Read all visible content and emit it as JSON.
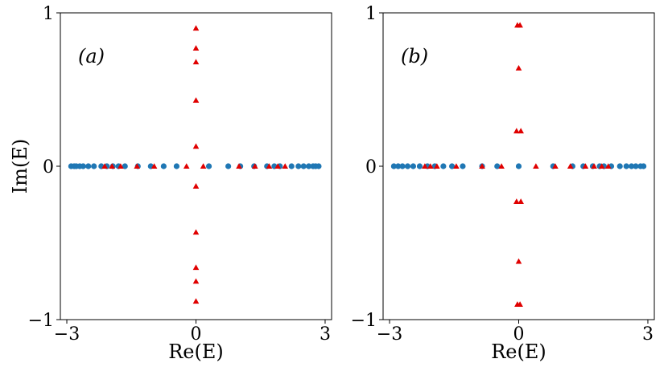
{
  "chart_data": [
    {
      "type": "scatter",
      "panel_label": "(a)",
      "xlabel": "Re(E)",
      "ylabel": "Im(E)",
      "xlim": [
        -3.15,
        3.15
      ],
      "ylim": [
        -1,
        1
      ],
      "xticks": [
        {
          "v": -3,
          "label": "−3"
        },
        {
          "v": 0,
          "label": "0"
        },
        {
          "v": 3,
          "label": "3"
        }
      ],
      "yticks": [
        {
          "v": -1,
          "label": "−1"
        },
        {
          "v": 0,
          "label": "0"
        },
        {
          "v": 1,
          "label": "1"
        }
      ],
      "grid": false,
      "series": [
        {
          "marker": "circle",
          "color": "#1f77b4",
          "points": [
            [
              -2.9,
              0
            ],
            [
              -2.83,
              0
            ],
            [
              -2.78,
              0
            ],
            [
              -2.7,
              0
            ],
            [
              -2.62,
              0
            ],
            [
              -2.5,
              0
            ],
            [
              -2.37,
              0
            ],
            [
              -2.2,
              0
            ],
            [
              -2.07,
              0
            ],
            [
              -1.93,
              0
            ],
            [
              -1.8,
              0
            ],
            [
              -1.65,
              0
            ],
            [
              -1.35,
              0
            ],
            [
              -1.05,
              0
            ],
            [
              -0.75,
              0
            ],
            [
              -0.45,
              0
            ],
            [
              0.3,
              0
            ],
            [
              0.75,
              0
            ],
            [
              1.03,
              0
            ],
            [
              1.35,
              0
            ],
            [
              1.65,
              0
            ],
            [
              1.82,
              0
            ],
            [
              1.95,
              0
            ],
            [
              2.22,
              0
            ],
            [
              2.38,
              0
            ],
            [
              2.5,
              0
            ],
            [
              2.62,
              0
            ],
            [
              2.72,
              0
            ],
            [
              2.78,
              0
            ],
            [
              2.85,
              0
            ]
          ]
        },
        {
          "marker": "triangle",
          "color": "#e00000",
          "points": [
            [
              -2.12,
              0
            ],
            [
              -1.95,
              0
            ],
            [
              -1.75,
              0
            ],
            [
              -1.37,
              0
            ],
            [
              -0.97,
              0
            ],
            [
              -0.22,
              0
            ],
            [
              0.17,
              0
            ],
            [
              1.0,
              0
            ],
            [
              1.37,
              0
            ],
            [
              1.7,
              0
            ],
            [
              1.9,
              0
            ],
            [
              2.07,
              0
            ],
            [
              0,
              0.9
            ],
            [
              0,
              0.77
            ],
            [
              0,
              0.68
            ],
            [
              0,
              0.43
            ],
            [
              0,
              0.13
            ],
            [
              0,
              -0.13
            ],
            [
              0,
              -0.43
            ],
            [
              0,
              -0.66
            ],
            [
              0,
              -0.75
            ],
            [
              0,
              -0.88
            ]
          ]
        }
      ]
    },
    {
      "type": "scatter",
      "panel_label": "(b)",
      "xlabel": "Re(E)",
      "ylabel": "",
      "xlim": [
        -3.15,
        3.15
      ],
      "ylim": [
        -1,
        1
      ],
      "xticks": [
        {
          "v": -3,
          "label": "−3"
        },
        {
          "v": 0,
          "label": "0"
        },
        {
          "v": 3,
          "label": "3"
        }
      ],
      "yticks": [
        {
          "v": -1,
          "label": "−1"
        },
        {
          "v": 0,
          "label": "0"
        },
        {
          "v": 1,
          "label": "1"
        }
      ],
      "grid": false,
      "series": [
        {
          "marker": "circle",
          "color": "#1f77b4",
          "points": [
            [
              -2.9,
              0
            ],
            [
              -2.8,
              0
            ],
            [
              -2.7,
              0
            ],
            [
              -2.58,
              0
            ],
            [
              -2.45,
              0
            ],
            [
              -2.3,
              0
            ],
            [
              -2.12,
              0
            ],
            [
              -1.95,
              0
            ],
            [
              -1.75,
              0
            ],
            [
              -1.55,
              0
            ],
            [
              -1.3,
              0
            ],
            [
              -0.85,
              0
            ],
            [
              -0.5,
              0
            ],
            [
              0,
              0
            ],
            [
              0.8,
              0
            ],
            [
              1.25,
              0
            ],
            [
              1.5,
              0
            ],
            [
              1.72,
              0
            ],
            [
              1.88,
              0
            ],
            [
              1.98,
              0
            ],
            [
              2.15,
              0
            ],
            [
              2.35,
              0
            ],
            [
              2.5,
              0
            ],
            [
              2.62,
              0
            ],
            [
              2.72,
              0
            ],
            [
              2.83,
              0
            ],
            [
              2.9,
              0
            ]
          ]
        },
        {
          "marker": "triangle",
          "color": "#e00000",
          "points": [
            [
              -2.18,
              0
            ],
            [
              -2.05,
              0
            ],
            [
              -1.9,
              0
            ],
            [
              -1.45,
              0
            ],
            [
              -0.85,
              0
            ],
            [
              -0.4,
              0
            ],
            [
              0.4,
              0
            ],
            [
              0.85,
              0
            ],
            [
              1.2,
              0
            ],
            [
              1.55,
              0
            ],
            [
              1.75,
              0
            ],
            [
              1.93,
              0
            ],
            [
              2.08,
              0
            ],
            [
              -0.03,
              0.92
            ],
            [
              0.03,
              0.92
            ],
            [
              0,
              0.64
            ],
            [
              -0.05,
              0.23
            ],
            [
              0.05,
              0.23
            ],
            [
              -0.05,
              -0.23
            ],
            [
              0.05,
              -0.23
            ],
            [
              0,
              -0.62
            ],
            [
              -0.03,
              -0.9
            ],
            [
              0.03,
              -0.9
            ]
          ]
        }
      ]
    }
  ]
}
